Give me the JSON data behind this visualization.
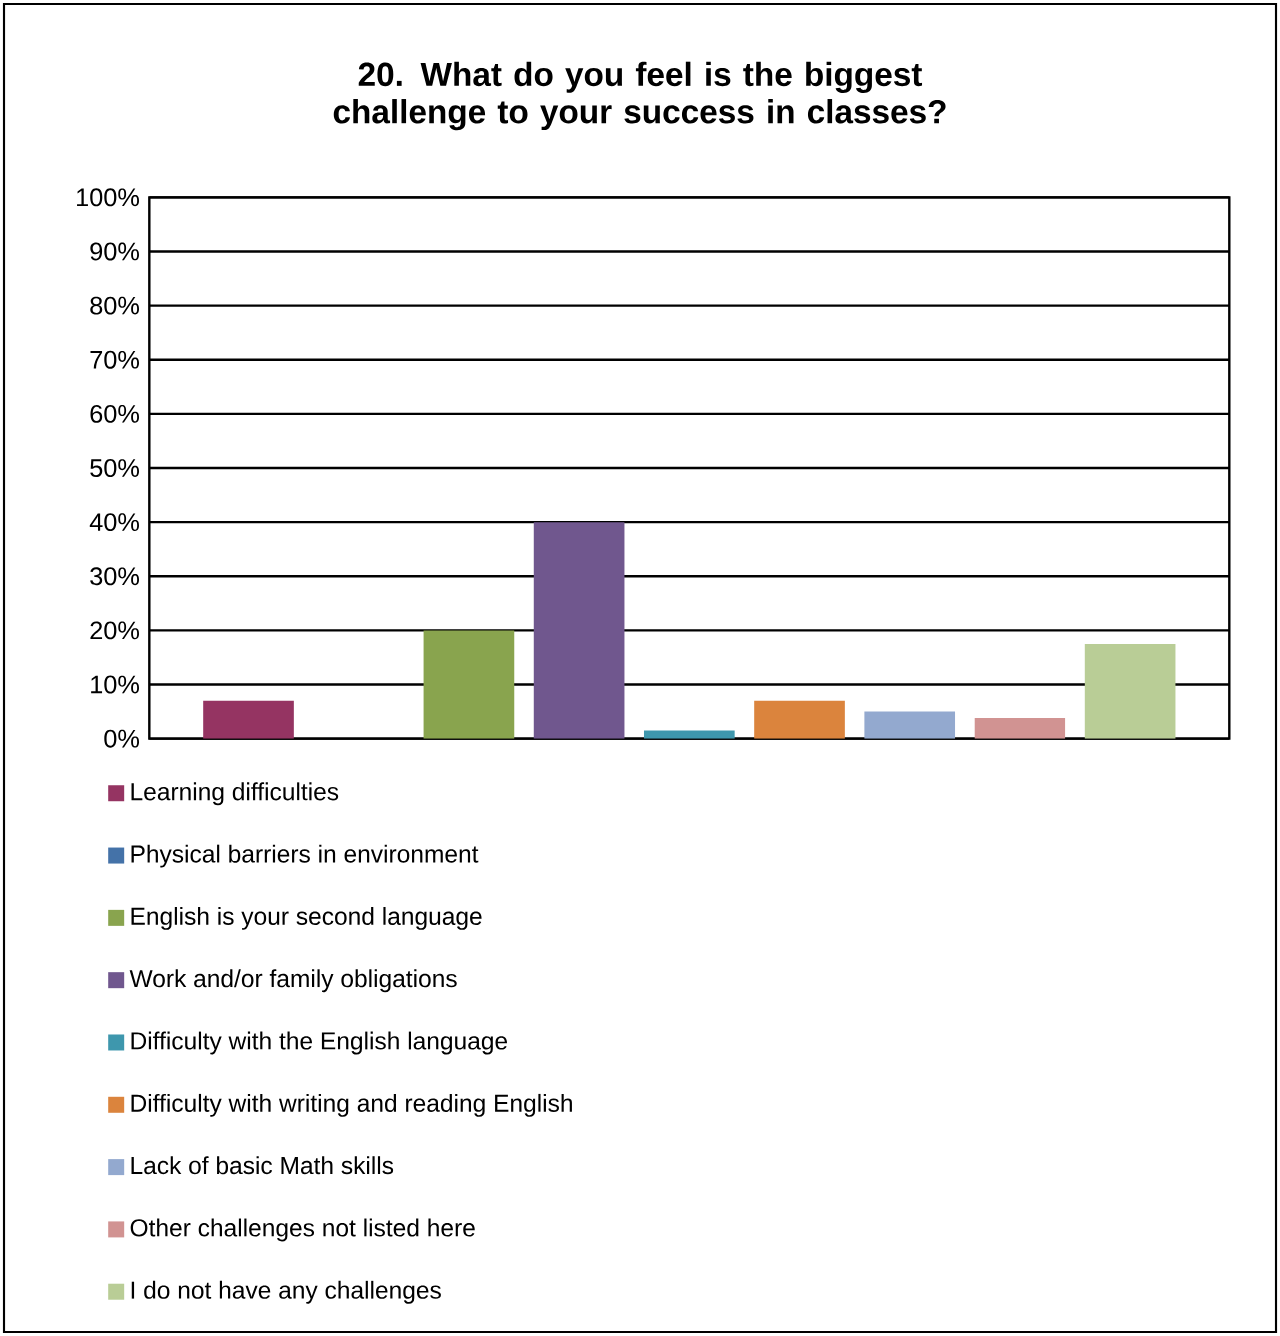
{
  "chart_data": {
    "type": "bar",
    "title": "20. What do you feel is the biggest challenge to your success in classes?",
    "categories": [
      null
    ],
    "series": [
      {
        "name": "Learning difficulties",
        "color": "#953462",
        "values": [
          7
        ]
      },
      {
        "name": "Physical barriers in environment",
        "color": "#4472a8",
        "values": [
          0
        ]
      },
      {
        "name": "English is your second language",
        "color": "#89a44e",
        "values": [
          20
        ]
      },
      {
        "name": "Work and/or family obligations",
        "color": "#70578e",
        "values": [
          40
        ]
      },
      {
        "name": "Difficulty with the English language",
        "color": "#3e97ad",
        "values": [
          1.5
        ]
      },
      {
        "name": "Difficulty with writing and reading English",
        "color": "#db843d",
        "values": [
          7
        ]
      },
      {
        "name": "Lack of basic Math skills",
        "color": "#93a9cf",
        "values": [
          5
        ]
      },
      {
        "name": "Other challenges not listed here",
        "color": "#d19392",
        "values": [
          3.8
        ]
      },
      {
        "name": "I do not have any challenges",
        "color": "#b9cd96",
        "values": [
          17.5
        ]
      }
    ],
    "ylim": [
      0,
      100
    ],
    "yticks": [
      {
        "value": 0,
        "label": "0%"
      },
      {
        "value": 10,
        "label": "10%"
      },
      {
        "value": 20,
        "label": "20%"
      },
      {
        "value": 30,
        "label": "30%"
      },
      {
        "value": 40,
        "label": "40%"
      },
      {
        "value": 50,
        "label": "50%"
      },
      {
        "value": 60,
        "label": "60%"
      },
      {
        "value": 70,
        "label": "70%"
      },
      {
        "value": 80,
        "label": "80%"
      },
      {
        "value": 90,
        "label": "90%"
      },
      {
        "value": 100,
        "label": "100%"
      }
    ],
    "grid": "y",
    "legend": "bottom"
  }
}
